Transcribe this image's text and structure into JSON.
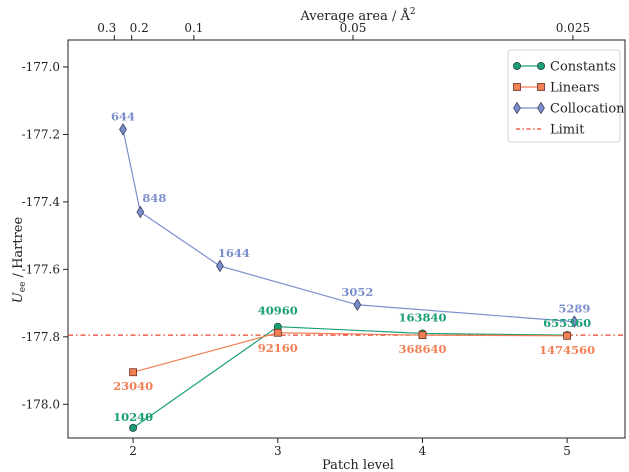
{
  "chart_data": {
    "type": "line",
    "xlabel": "Patch level",
    "ylabel_main": "U",
    "ylabel_sub": "ee",
    "ylabel_rest": " / Hartree",
    "top_axis_label_main": "Average area / Å",
    "top_axis_label_sup": "2",
    "xlim": [
      1.55,
      5.4
    ],
    "ylim": [
      -178.1,
      -176.92
    ],
    "x_ticks": [
      {
        "value": 2,
        "label": "2"
      },
      {
        "value": 3,
        "label": "3"
      },
      {
        "value": 4,
        "label": "4"
      },
      {
        "value": 5,
        "label": "5"
      }
    ],
    "y_ticks": [
      {
        "value": -177.0,
        "label": "-177.0"
      },
      {
        "value": -177.2,
        "label": "-177.2"
      },
      {
        "value": -177.4,
        "label": "-177.4"
      },
      {
        "value": -177.6,
        "label": "-177.6"
      },
      {
        "value": -177.8,
        "label": "-177.8"
      },
      {
        "value": -178.0,
        "label": "-178.0"
      }
    ],
    "top_ticks": [
      {
        "value": 1.87,
        "label": "0.3"
      },
      {
        "value": 1.99,
        "label": "0.2"
      },
      {
        "value": 2.42,
        "label": "0.1"
      },
      {
        "value": 3.52,
        "label": "0.05"
      },
      {
        "value": 5.04,
        "label": "0.025"
      }
    ],
    "series": [
      {
        "name": "Constants",
        "color": "#1a9e77",
        "marker": "circle",
        "points": [
          {
            "x": 2,
            "y": -178.07,
            "label": "10240"
          },
          {
            "x": 3,
            "y": -177.77,
            "label": "40960"
          },
          {
            "x": 4,
            "y": -177.79,
            "label": "163840"
          },
          {
            "x": 5,
            "y": -177.795,
            "label": "655360"
          }
        ]
      },
      {
        "name": "Linears",
        "color": "#f07f55",
        "marker": "square",
        "points": [
          {
            "x": 2,
            "y": -177.905,
            "label": "23040"
          },
          {
            "x": 3,
            "y": -177.788,
            "label": "92160"
          },
          {
            "x": 4,
            "y": -177.795,
            "label": "368640"
          },
          {
            "x": 5,
            "y": -177.797,
            "label": "1474560"
          }
        ]
      },
      {
        "name": "Collocation",
        "color": "#7b8fcc",
        "marker": "diamond",
        "points": [
          {
            "x": 1.93,
            "y": -177.185,
            "label": "644"
          },
          {
            "x": 2.05,
            "y": -177.43,
            "label": "848"
          },
          {
            "x": 2.6,
            "y": -177.59,
            "label": "1644"
          },
          {
            "x": 3.55,
            "y": -177.705,
            "label": "3052"
          },
          {
            "x": 5.05,
            "y": -177.755,
            "label": "5289"
          }
        ]
      }
    ],
    "reference_line": {
      "name": "Limit",
      "y": -177.795,
      "color": "#e8412e"
    },
    "legend_position": "top-right",
    "grid": false
  }
}
